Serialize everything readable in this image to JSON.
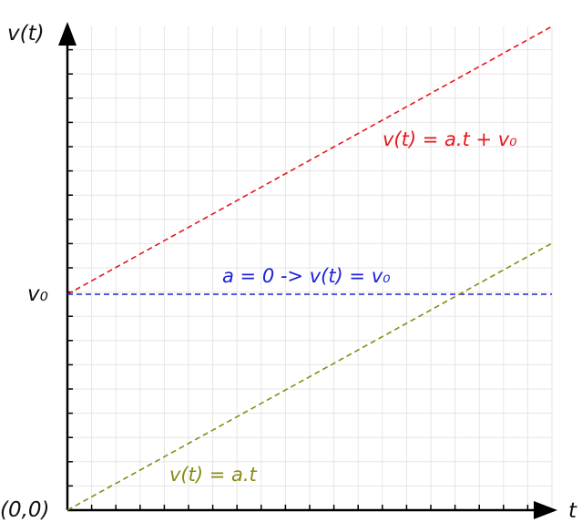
{
  "diagram": {
    "axes": {
      "y_label": "v(t)",
      "x_label": "t",
      "origin_label": "(0,0)",
      "v0_label": "v₀",
      "axis_color": "#000000",
      "grid_color": "#e6e6e6"
    },
    "lines": [
      {
        "id": "accelerated-with-v0",
        "label": "v(t) = a.t + v₀",
        "color": "#e8161b",
        "style": "dashed"
      },
      {
        "id": "constant-velocity",
        "label": "a = 0 -> v(t) = v₀",
        "color": "#1f23d8",
        "style": "dashed"
      },
      {
        "id": "accelerated-from-rest",
        "label": "v(t) = a.t",
        "color": "#8a8a14",
        "style": "dashed"
      }
    ]
  }
}
